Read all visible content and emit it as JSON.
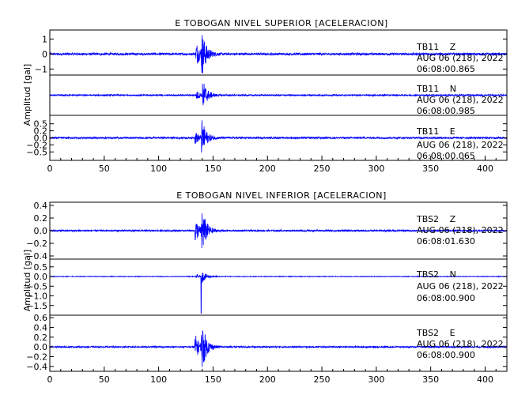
{
  "trace_color": "#0000ff",
  "chart_data": [
    {
      "type": "line",
      "title": "E TOBOGAN NIVEL SUPERIOR [ACELERACION]",
      "ylabel": "Amplitud [gal]",
      "xlim": [
        0,
        420
      ],
      "x_ticks": [
        0,
        50,
        100,
        150,
        200,
        250,
        300,
        350,
        400
      ],
      "grid": false,
      "series": [
        {
          "name": "TB11 Z",
          "label": {
            "station": "TB11",
            "component": "Z",
            "date": "AUG 06 (218), 2022",
            "time": "06:08:00.865"
          },
          "ylim": [
            -1.4,
            1.6
          ],
          "y_ticks": [
            1,
            0,
            -1
          ],
          "y_tick_labels": [
            "1",
            "0",
            "−1"
          ],
          "noise": 0.07,
          "events": [
            {
              "t": 134,
              "a": 0.9
            },
            {
              "t": 139,
              "a": 1.6
            }
          ]
        },
        {
          "name": "TB11 N",
          "label": {
            "station": "TB11",
            "component": "N",
            "date": "AUG 06 (218), 2022",
            "time": "06:08:00.985"
          },
          "ylim": [
            -0.6,
            0.6
          ],
          "y_ticks": [],
          "y_tick_labels": [],
          "noise": 0.02,
          "events": [
            {
              "t": 134,
              "a": 0.15
            },
            {
              "t": 140,
              "a": 0.5
            }
          ]
        },
        {
          "name": "TB11 E",
          "label": {
            "station": "TB11",
            "component": "E",
            "date": "AUG 06 (218), 2022",
            "time": "06:08:00.065"
          },
          "ylim": [
            -0.8,
            0.8
          ],
          "y_ticks": [
            0.5,
            0.25,
            0,
            -0.25,
            -0.5
          ],
          "y_tick_labels": [
            "0.5",
            "0.2",
            "0.0",
            "−0.2",
            "−0.5"
          ],
          "noise": 0.03,
          "events": [
            {
              "t": 133,
              "a": 0.25
            },
            {
              "t": 139,
              "a": 0.7
            }
          ]
        }
      ]
    },
    {
      "type": "line",
      "title": "E TOBOGAN NIVEL INFERIOR [ACELERACION]",
      "ylabel": "Amplitud [gal]",
      "xlim": [
        0,
        420
      ],
      "x_ticks": [
        0,
        50,
        100,
        150,
        200,
        250,
        300,
        350,
        400
      ],
      "grid": false,
      "series": [
        {
          "name": "TBS2 Z",
          "label": {
            "station": "TBS2",
            "component": "Z",
            "date": "AUG 06 (218), 2022",
            "time": "06:08:01.630"
          },
          "ylim": [
            -0.45,
            0.45
          ],
          "y_ticks": [
            0.4,
            0.2,
            0,
            -0.2,
            -0.4
          ],
          "y_tick_labels": [
            "0.4",
            "0.2",
            "0.0",
            "−0.2",
            "−0.4"
          ],
          "noise": 0.012,
          "events": [
            {
              "t": 133,
              "a": 0.22
            },
            {
              "t": 139,
              "a": 0.4
            }
          ]
        },
        {
          "name": "TBS2 N",
          "label": {
            "station": "TBS2",
            "component": "N",
            "date": "AUG 06 (218), 2022",
            "time": "06:08:00.900"
          },
          "ylim": [
            -2.0,
            0.9
          ],
          "y_ticks": [
            0.5,
            0,
            -0.5,
            -1.0,
            -1.5
          ],
          "y_tick_labels": [
            "0.5",
            "0.0",
            "−0.5",
            "−1.0",
            "−1.5"
          ],
          "noise": 0.015,
          "events": [
            {
              "t": 134,
              "a": 0.1
            },
            {
              "t": 139,
              "a": 0.35,
              "spike": -1.9
            }
          ]
        },
        {
          "name": "TBS2 E",
          "label": {
            "station": "TBS2",
            "component": "E",
            "date": "AUG 06 (218), 2022",
            "time": "06:08:00.900"
          },
          "ylim": [
            -0.5,
            0.65
          ],
          "y_ticks": [
            0.6,
            0.4,
            0.2,
            0,
            -0.2,
            -0.4
          ],
          "y_tick_labels": [
            "0.6",
            "0.4",
            "0.2",
            "0.0",
            "−0.2",
            "−0.4"
          ],
          "noise": 0.014,
          "events": [
            {
              "t": 133,
              "a": 0.3
            },
            {
              "t": 139,
              "a": 0.55
            }
          ]
        }
      ]
    }
  ]
}
